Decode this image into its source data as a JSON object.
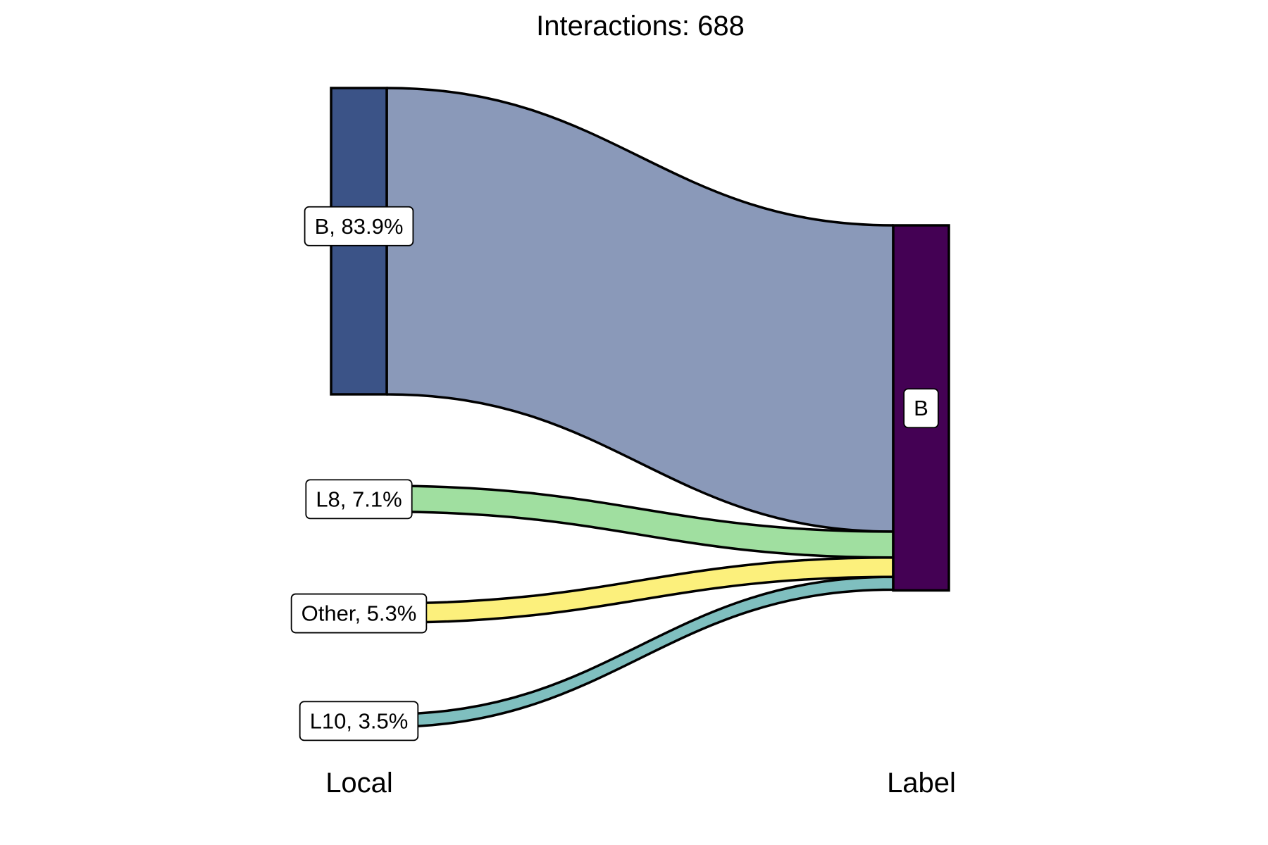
{
  "chart_data": {
    "type": "sankey",
    "title": "Interactions: 688",
    "axes": [
      "Local",
      "Label"
    ],
    "total": 688,
    "source_nodes": [
      {
        "name": "B",
        "percent": 83.9,
        "label": "B, 83.9%",
        "color": "#3b5387",
        "flow_color": "#8a99b9"
      },
      {
        "name": "L8",
        "percent": 7.1,
        "label": "L8, 7.1%",
        "color": "#a0dfa0",
        "flow_color": "#a0dfa0"
      },
      {
        "name": "Other",
        "percent": 5.3,
        "label": "Other, 5.3%",
        "color": "#fcf07c",
        "flow_color": "#fcf07c"
      },
      {
        "name": "L10",
        "percent": 3.5,
        "label": "L10, 3.5%",
        "color": "#7fbfbf",
        "flow_color": "#7fbfbf"
      }
    ],
    "target_nodes": [
      {
        "name": "B",
        "percent": 100,
        "label": "B",
        "color": "#440154"
      }
    ],
    "flows": [
      {
        "source": "B",
        "target": "B",
        "percent": 83.9
      },
      {
        "source": "L8",
        "target": "B",
        "percent": 7.1
      },
      {
        "source": "Other",
        "target": "B",
        "percent": 5.3
      },
      {
        "source": "L10",
        "target": "B",
        "percent": 3.5
      }
    ]
  }
}
